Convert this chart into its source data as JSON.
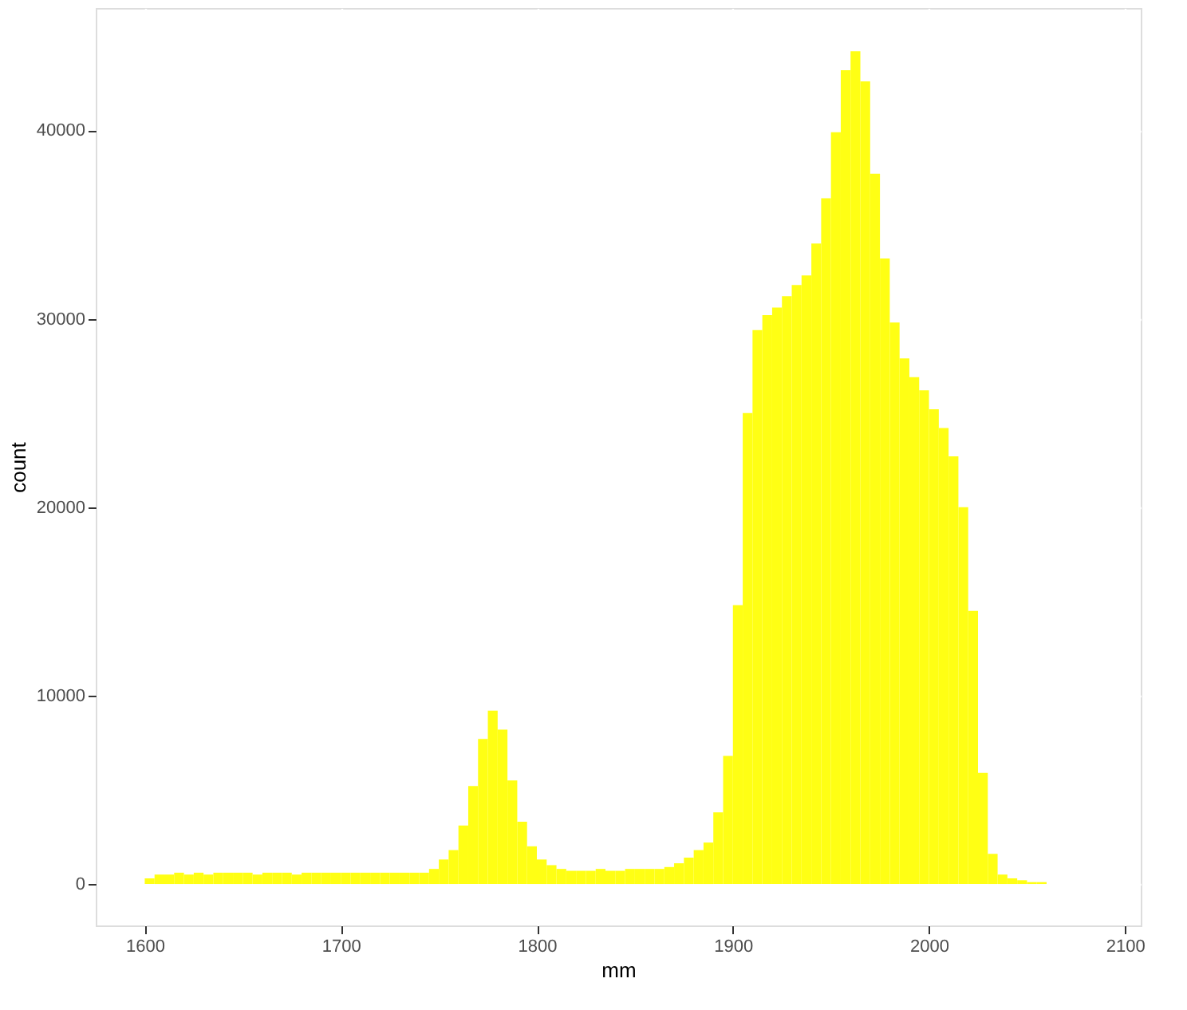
{
  "chart_data": {
    "type": "histogram",
    "xlabel": "mm",
    "ylabel": "count",
    "color": "#ffff14",
    "bins": [
      1600,
      1605,
      1610,
      1615,
      1620,
      1625,
      1630,
      1635,
      1640,
      1645,
      1650,
      1655,
      1660,
      1665,
      1670,
      1675,
      1680,
      1685,
      1690,
      1695,
      1700,
      1705,
      1710,
      1715,
      1720,
      1725,
      1730,
      1735,
      1740,
      1745,
      1750,
      1755,
      1760,
      1765,
      1770,
      1775,
      1780,
      1785,
      1790,
      1795,
      1800,
      1805,
      1810,
      1815,
      1820,
      1825,
      1830,
      1835,
      1840,
      1845,
      1850,
      1855,
      1860,
      1865,
      1870,
      1875,
      1880,
      1885,
      1890,
      1895,
      1900,
      1905,
      1910,
      1915,
      1920,
      1925,
      1930,
      1935,
      1940,
      1945,
      1950,
      1955,
      1960,
      1965,
      1970,
      1975,
      1980,
      1985,
      1990,
      1995,
      2000,
      2005,
      2010,
      2015,
      2020,
      2025,
      2030,
      2035,
      2040,
      2045,
      2050,
      2055,
      2060
    ],
    "values": [
      300,
      500,
      500,
      600,
      500,
      600,
      500,
      600,
      600,
      600,
      600,
      500,
      600,
      600,
      600,
      500,
      600,
      600,
      600,
      600,
      600,
      600,
      600,
      600,
      600,
      600,
      600,
      600,
      600,
      800,
      1300,
      1800,
      3100,
      5200,
      7700,
      9200,
      8200,
      5500,
      3300,
      2000,
      1300,
      1000,
      800,
      700,
      700,
      700,
      800,
      700,
      700,
      800,
      800,
      800,
      800,
      900,
      1100,
      1400,
      1800,
      2200,
      3800,
      6800,
      14800,
      25000,
      29400,
      30200,
      30600,
      31200,
      31800,
      32300,
      34000,
      36400,
      39900,
      43200,
      44200,
      42600,
      37700,
      33200,
      29800,
      27900,
      26900,
      26200,
      25200,
      24200,
      22700,
      20000,
      14500,
      5900,
      1600,
      500,
      300,
      200,
      100,
      100
    ],
    "xlim": [
      1575,
      2108
    ],
    "ylim": [
      -2200,
      46500
    ],
    "xticks": [
      1600,
      1700,
      1800,
      1900,
      2000,
      2100
    ],
    "yticks": [
      0,
      10000,
      20000,
      30000,
      40000
    ],
    "grid": true
  }
}
